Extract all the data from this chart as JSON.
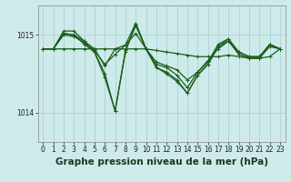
{
  "background_color": "#ceeaea",
  "line_color": "#1a5e1a",
  "grid_color": "#a8cece",
  "title": "Graphe pression niveau de la mer (hPa)",
  "xlim": [
    -0.5,
    23.5
  ],
  "ylim": [
    1013.62,
    1015.38
  ],
  "yticks": [
    1014,
    1015
  ],
  "xticks": [
    0,
    1,
    2,
    3,
    4,
    5,
    6,
    7,
    8,
    9,
    10,
    11,
    12,
    13,
    14,
    15,
    16,
    17,
    18,
    19,
    20,
    21,
    22,
    23
  ],
  "series": [
    [
      1014.82,
      1014.82,
      1014.82,
      1014.82,
      1014.82,
      1014.82,
      1014.82,
      1014.82,
      1014.82,
      1014.82,
      1014.82,
      1014.8,
      1014.78,
      1014.76,
      1014.74,
      1014.72,
      1014.72,
      1014.72,
      1014.74,
      1014.72,
      1014.7,
      1014.7,
      1014.72,
      1014.82
    ],
    [
      1014.82,
      1014.82,
      1015.02,
      1015.0,
      1014.92,
      1014.82,
      1014.6,
      1014.82,
      1014.87,
      1015.02,
      1014.82,
      1014.65,
      1014.6,
      1014.55,
      1014.42,
      1014.52,
      1014.67,
      1014.82,
      1014.92,
      1014.78,
      1014.72,
      1014.72,
      1014.87,
      1014.82
    ],
    [
      1014.82,
      1014.82,
      1015.05,
      1015.05,
      1014.92,
      1014.78,
      1014.45,
      1014.02,
      1014.78,
      1015.15,
      1014.82,
      1014.58,
      1014.52,
      1014.42,
      1014.25,
      1014.48,
      1014.62,
      1014.85,
      1014.95,
      1014.75,
      1014.7,
      1014.7,
      1014.88,
      1014.82
    ],
    [
      1014.82,
      1014.82,
      1015.02,
      1015.0,
      1014.88,
      1014.78,
      1014.5,
      1014.02,
      1014.8,
      1015.12,
      1014.82,
      1014.58,
      1014.5,
      1014.4,
      1014.25,
      1014.48,
      1014.62,
      1014.85,
      1014.92,
      1014.75,
      1014.7,
      1014.7,
      1014.85,
      1014.82
    ],
    [
      1014.82,
      1014.82,
      1015.0,
      1014.98,
      1014.9,
      1014.8,
      1014.62,
      1014.75,
      1014.87,
      1015.15,
      1014.82,
      1014.62,
      1014.58,
      1014.48,
      1014.32,
      1014.52,
      1014.65,
      1014.88,
      1014.95,
      1014.78,
      1014.72,
      1014.72,
      1014.88,
      1014.82
    ]
  ],
  "linewidth": 0.9,
  "markersize": 3.5,
  "title_fontsize": 7.5,
  "tick_fontsize": 5.5
}
